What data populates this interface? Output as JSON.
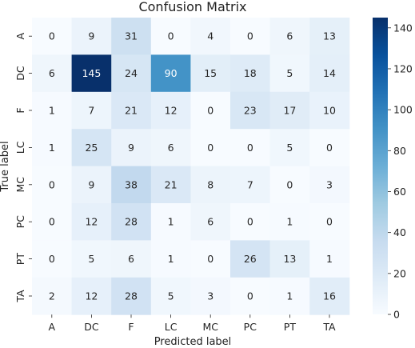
{
  "chart_data": {
    "type": "heatmap",
    "title": "Confusion Matrix",
    "xlabel": "Predicted label",
    "ylabel": "True label",
    "x_categories": [
      "A",
      "DC",
      "F",
      "LC",
      "MC",
      "PC",
      "PT",
      "TA"
    ],
    "y_categories": [
      "A",
      "DC",
      "F",
      "LC",
      "MC",
      "PC",
      "PT",
      "TA"
    ],
    "values": [
      [
        0,
        9,
        31,
        0,
        4,
        0,
        6,
        13
      ],
      [
        6,
        145,
        24,
        90,
        15,
        18,
        5,
        14
      ],
      [
        1,
        7,
        21,
        12,
        0,
        23,
        17,
        10
      ],
      [
        1,
        25,
        9,
        6,
        0,
        0,
        5,
        0
      ],
      [
        0,
        9,
        38,
        21,
        8,
        7,
        0,
        3
      ],
      [
        0,
        12,
        28,
        1,
        6,
        0,
        1,
        0
      ],
      [
        0,
        5,
        6,
        1,
        0,
        26,
        13,
        1
      ],
      [
        2,
        12,
        28,
        5,
        3,
        0,
        1,
        16
      ]
    ],
    "colorbar": {
      "range": [
        0,
        145
      ],
      "ticks": [
        0,
        20,
        40,
        60,
        80,
        100,
        120,
        140
      ],
      "colormap": "Blues"
    }
  }
}
